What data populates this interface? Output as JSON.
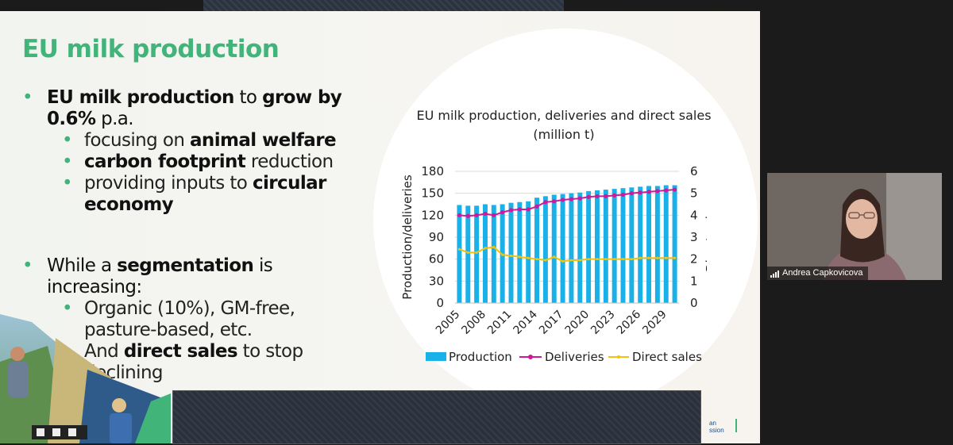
{
  "slide": {
    "title": "EU milk production",
    "bullets": {
      "b1_bold1": "EU milk production",
      "b1_text1": " to ",
      "b1_bold2": "grow by 0.6%",
      "b1_text2": " p.a.",
      "s1_text": "focusing on ",
      "s1_bold": "animal welfare",
      "s2_bold": "carbon footprint",
      "s2_text": " reduction",
      "s3_text": "providing inputs to ",
      "s3_bold": "circular economy",
      "b2_text1": "While a ",
      "b2_bold": "segmentation",
      "b2_text2": " is increasing:",
      "s4_text": "Organic (10%), GM-free, pasture-based, etc.",
      "s5_text1": "And ",
      "s5_bold": "direct sales",
      "s5_text2": " to stop declining"
    },
    "logo_text_line1": "an",
    "logo_text_line2": "ssion"
  },
  "chart_data": {
    "type": "bar+line",
    "title": "EU milk production, deliveries and direct sales (million t)",
    "ylabel": "Production/deliveries",
    "y2label": "Direct sales",
    "ylim": [
      0,
      180
    ],
    "y2lim": [
      0,
      6
    ],
    "yticks": [
      0,
      30,
      60,
      90,
      120,
      150,
      180
    ],
    "y2ticks": [
      0,
      1,
      2,
      3,
      4,
      5,
      6
    ],
    "x": [
      2005,
      2006,
      2007,
      2008,
      2009,
      2010,
      2011,
      2012,
      2013,
      2014,
      2015,
      2016,
      2017,
      2018,
      2019,
      2020,
      2021,
      2022,
      2023,
      2024,
      2025,
      2026,
      2027,
      2028,
      2029,
      2030
    ],
    "xtick_labels": [
      "2005",
      "2008",
      "2011",
      "2014",
      "2017",
      "2020",
      "2023",
      "2026",
      "2029"
    ],
    "series": [
      {
        "name": "Production",
        "type": "bar",
        "axis": "left",
        "color": "#1ab0e8",
        "values": [
          134,
          133,
          133,
          135,
          134,
          135,
          137,
          138,
          139,
          144,
          146,
          148,
          149,
          150,
          151,
          153,
          154,
          155,
          156,
          157,
          158,
          159,
          160,
          160,
          161,
          161
        ]
      },
      {
        "name": "Deliveries",
        "type": "line",
        "axis": "left",
        "color": "#d0199a",
        "values": [
          120,
          119,
          120,
          122,
          120,
          124,
          127,
          128,
          128,
          132,
          138,
          139,
          141,
          142,
          143,
          145,
          146,
          146,
          147,
          148,
          150,
          151,
          152,
          153,
          154,
          155
        ]
      },
      {
        "name": "Direct sales",
        "type": "line",
        "axis": "right",
        "color": "#f4c20d",
        "values": [
          2.45,
          2.3,
          2.3,
          2.5,
          2.55,
          2.2,
          2.15,
          2.1,
          2.05,
          2.0,
          1.95,
          2.1,
          1.9,
          1.95,
          1.95,
          2.0,
          2.0,
          2.0,
          2.0,
          2.0,
          2.0,
          2.05,
          2.05,
          2.05,
          2.05,
          2.05
        ]
      }
    ]
  },
  "video": {
    "participant_name": "Andrea Capkovicova"
  }
}
